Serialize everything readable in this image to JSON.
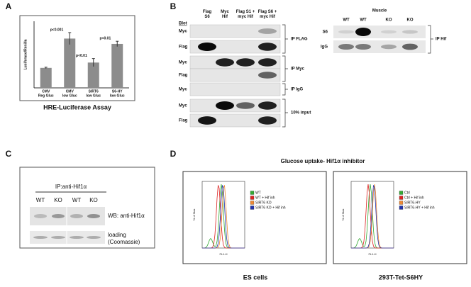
{
  "panel_labels": [
    "A",
    "B",
    "C",
    "D"
  ],
  "chart_data": {
    "type": "bar",
    "title": "HRE-Luciferase Assay",
    "y_label": "Luciferase/Renilla",
    "categories": [
      [
        "CMV",
        "Reg Gluc"
      ],
      [
        "CMV",
        "low Gluc"
      ],
      [
        "SIRT6",
        "low Gluc"
      ],
      [
        "S6-HY",
        "low Gluc"
      ]
    ],
    "values": [
      0.3,
      0.74,
      0.38,
      0.66
    ],
    "errors": [
      0.01,
      0.09,
      0.06,
      0.04
    ],
    "annotations": [
      null,
      "p<0.001",
      "p<0.01",
      "p<0.01"
    ],
    "ylim": [
      0,
      1
    ],
    "color": "#8c8c8c"
  },
  "blot_b": {
    "header": [
      "Blot",
      "Flag S6",
      "Myc Hif",
      "Flag S1 + myc Hif",
      "Flag S6 + myc Hif"
    ],
    "rows": [
      "Myc",
      "Flag",
      "Myc",
      "Flag",
      "Myc",
      "Myc",
      "Flag"
    ],
    "ip_labels": [
      "IP FLAG",
      "IP Myc",
      "IP IgG",
      "10% input"
    ],
    "muscle": {
      "title": "Muscle",
      "columns": [
        "WT",
        "WT",
        "KO",
        "KO"
      ],
      "rows": [
        "S6",
        "IgG"
      ],
      "ip_label": "IP Hif"
    }
  },
  "blot_c": {
    "ip_label": "IP:anti-Hif1α",
    "columns": [
      "WT",
      "KO",
      "WT",
      "KO"
    ],
    "wb_label": "WB: anti-Hif1α",
    "loading": [
      "loading",
      "(Coomassie)"
    ]
  },
  "flow_d": {
    "title": "Glucose uptake- Hif1α inhibitor",
    "y_label": "% of Max",
    "x_label": "FL1-H",
    "plots": [
      {
        "caption": "ES cells",
        "legend": [
          {
            "name": "WT",
            "color": "#33aa33"
          },
          {
            "name": "WT + Hif inh",
            "color": "#dd2222"
          },
          {
            "name": "SIRT6 KO",
            "color": "#ee8833"
          },
          {
            "name": "SIRT6 KO + Hif inh",
            "color": "#2233aa"
          }
        ]
      },
      {
        "caption": "293T-Tet-S6HY",
        "legend": [
          {
            "name": "Ctrl",
            "color": "#33aa33"
          },
          {
            "name": "Ctrl + Hif inh",
            "color": "#dd2222"
          },
          {
            "name": "SIRT6-HY",
            "color": "#ee8833"
          },
          {
            "name": "SIRT6-HY + Hif inh",
            "color": "#2233aa"
          }
        ]
      }
    ]
  }
}
